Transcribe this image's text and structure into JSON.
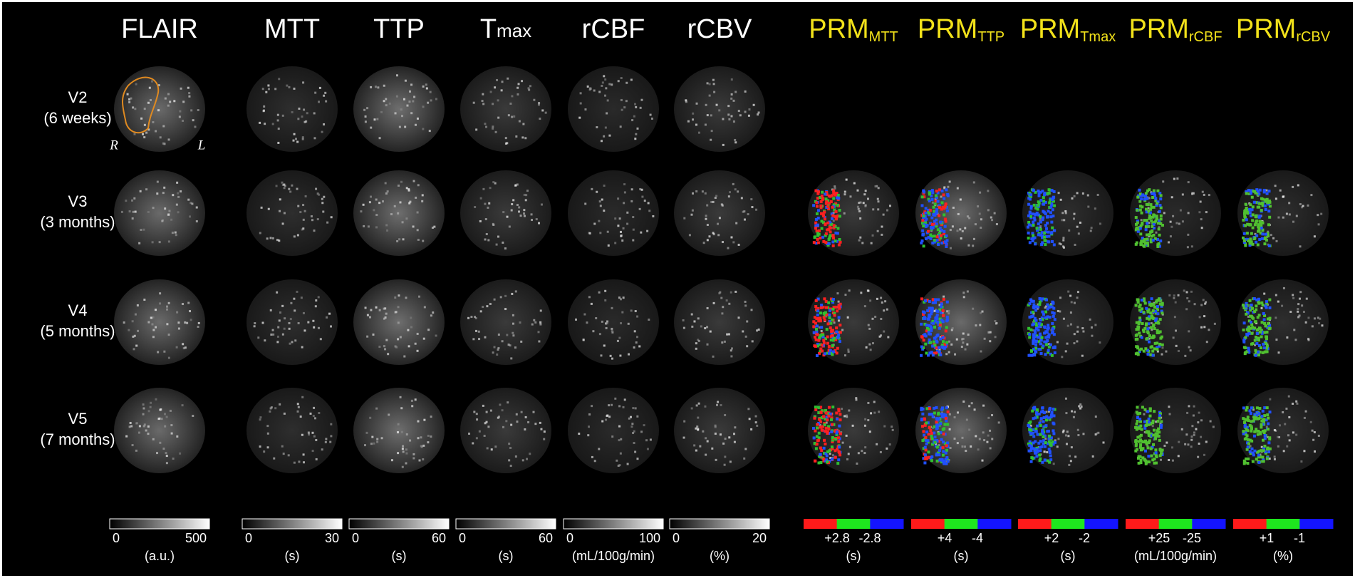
{
  "columns": [
    {
      "title": "FLAIR",
      "colorbar": {
        "min": "0",
        "max": "500",
        "unit": "(a.u.)"
      }
    },
    {
      "title": "MTT",
      "colorbar": {
        "min": "0",
        "max": "30",
        "unit": "(s)"
      }
    },
    {
      "title": "TTP",
      "colorbar": {
        "min": "0",
        "max": "60",
        "unit": "(s)"
      }
    },
    {
      "title": "T",
      "subscript": "max",
      "colorbar": {
        "min": "0",
        "max": "60",
        "unit": "(s)"
      }
    },
    {
      "title": "rCBF",
      "colorbar": {
        "min": "0",
        "max": "100",
        "unit": "(mL/100g/min)"
      }
    },
    {
      "title": "rCBV",
      "colorbar": {
        "min": "0",
        "max": "20",
        "unit": "(%)"
      }
    },
    {
      "title": "PRM",
      "subscript": "MTT",
      "colorbar": {
        "plus": "+2.8",
        "minus": "-2.8",
        "unit": "(s)"
      }
    },
    {
      "title": "PRM",
      "subscript": "TTP",
      "colorbar": {
        "plus": "+4",
        "minus": "-4",
        "unit": "(s)"
      }
    },
    {
      "title": "PRM",
      "subscript": "Tmax",
      "colorbar": {
        "plus": "+2",
        "minus": "-2",
        "unit": "(s)"
      }
    },
    {
      "title": "PRM",
      "subscript": "rCBF",
      "colorbar": {
        "plus": "+25",
        "minus": "-25",
        "unit": "(mL/100g/min)"
      }
    },
    {
      "title": "PRM",
      "subscript": "rCBV",
      "colorbar": {
        "plus": "+1",
        "minus": "-1",
        "unit": "(%)"
      }
    }
  ],
  "rows": [
    {
      "visit": "V2",
      "time": "(6 weeks)"
    },
    {
      "visit": "V3",
      "time": "(3 months)"
    },
    {
      "visit": "V4",
      "time": "(5 months)"
    },
    {
      "visit": "V5",
      "time": "(7 months)"
    }
  ],
  "orientation": {
    "right": "R",
    "left": "L"
  }
}
